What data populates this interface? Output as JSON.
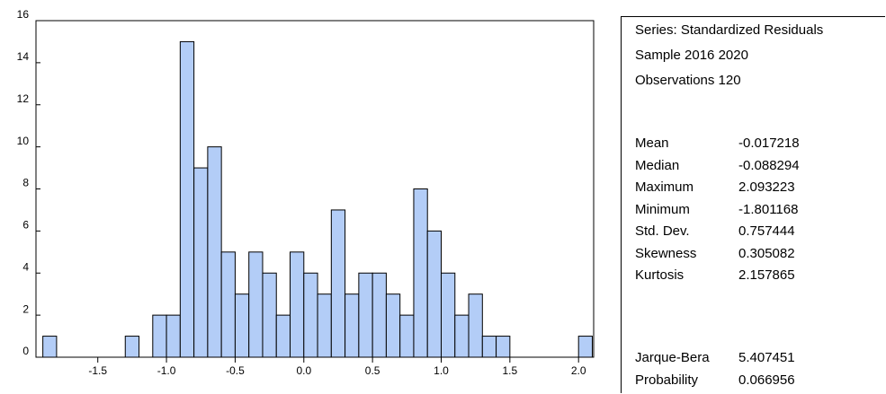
{
  "chart_data": {
    "type": "histogram",
    "bins": [
      -1.9,
      -1.8,
      -1.7,
      -1.6,
      -1.5,
      -1.4,
      -1.3,
      -1.2,
      -1.1,
      -1.0,
      -0.9,
      -0.8,
      -0.7,
      -0.6,
      -0.5,
      -0.4,
      -0.3,
      -0.2,
      -0.1,
      0.0,
      0.1,
      0.2,
      0.3,
      0.4,
      0.5,
      0.6,
      0.7,
      0.8,
      0.9,
      1.0,
      1.1,
      1.2,
      1.3,
      1.4,
      1.5,
      1.6,
      1.7,
      1.8,
      1.9,
      2.0,
      2.1
    ],
    "values": [
      1,
      0,
      0,
      0,
      0,
      0,
      1,
      0,
      2,
      2,
      15,
      9,
      10,
      5,
      3,
      5,
      4,
      2,
      5,
      4,
      3,
      7,
      3,
      4,
      4,
      3,
      2,
      8,
      6,
      4,
      2,
      3,
      1,
      1,
      0,
      0,
      0,
      0,
      0,
      1
    ],
    "color": "#b3cdf7",
    "xlim": [
      -1.95,
      2.11
    ],
    "xticks": [
      -1.5,
      {
        "value": -1,
        "label": "-1.0"
      },
      -0.5,
      {
        "value": 0,
        "label": "0.0"
      },
      0.5,
      {
        "value": 1,
        "label": "1.0"
      },
      1.5,
      {
        "value": 2,
        "label": "2.0"
      }
    ],
    "ylim": [
      0,
      16
    ],
    "yticks": [
      0,
      2,
      4,
      6,
      8,
      10,
      12,
      14,
      16
    ]
  },
  "stats": {
    "header": [
      "Series: Standardized Residuals",
      "Sample 2016 2020",
      "Observations 120"
    ],
    "rows": [
      [
        "Mean",
        "-0.017218"
      ],
      [
        "Median",
        "-0.088294"
      ],
      [
        "Maximum",
        "2.093223"
      ],
      [
        "Minimum",
        "-1.801168"
      ],
      [
        "Std. Dev.",
        "0.757444"
      ],
      [
        "Skewness",
        "0.305082"
      ],
      [
        "Kurtosis",
        "2.157865"
      ]
    ],
    "test_rows": [
      [
        "Jarque-Bera",
        "5.407451"
      ],
      [
        "Probability",
        "0.066956"
      ]
    ]
  }
}
